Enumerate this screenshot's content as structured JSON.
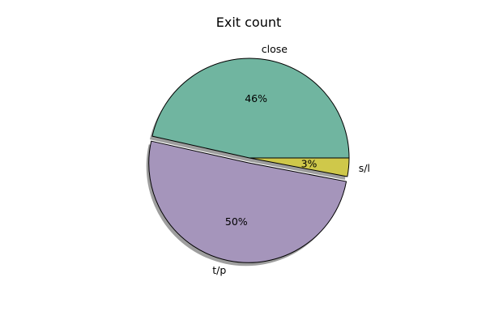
{
  "chart_data": {
    "type": "pie",
    "title": "Exit count",
    "start_angle_deg": 0,
    "direction": "counterclockwise",
    "shadow": true,
    "slices": [
      {
        "label": "close",
        "percent_label": "46%",
        "value": 46.5,
        "color": "#70b5a0",
        "explode": 0.0
      },
      {
        "label": "t/p",
        "percent_label": "50%",
        "value": 50.5,
        "color": "#a595bb",
        "explode": 0.05
      },
      {
        "label": "s/l",
        "percent_label": "3%",
        "value": 3.0,
        "color": "#cfc84a",
        "explode": 0.0
      }
    ]
  }
}
